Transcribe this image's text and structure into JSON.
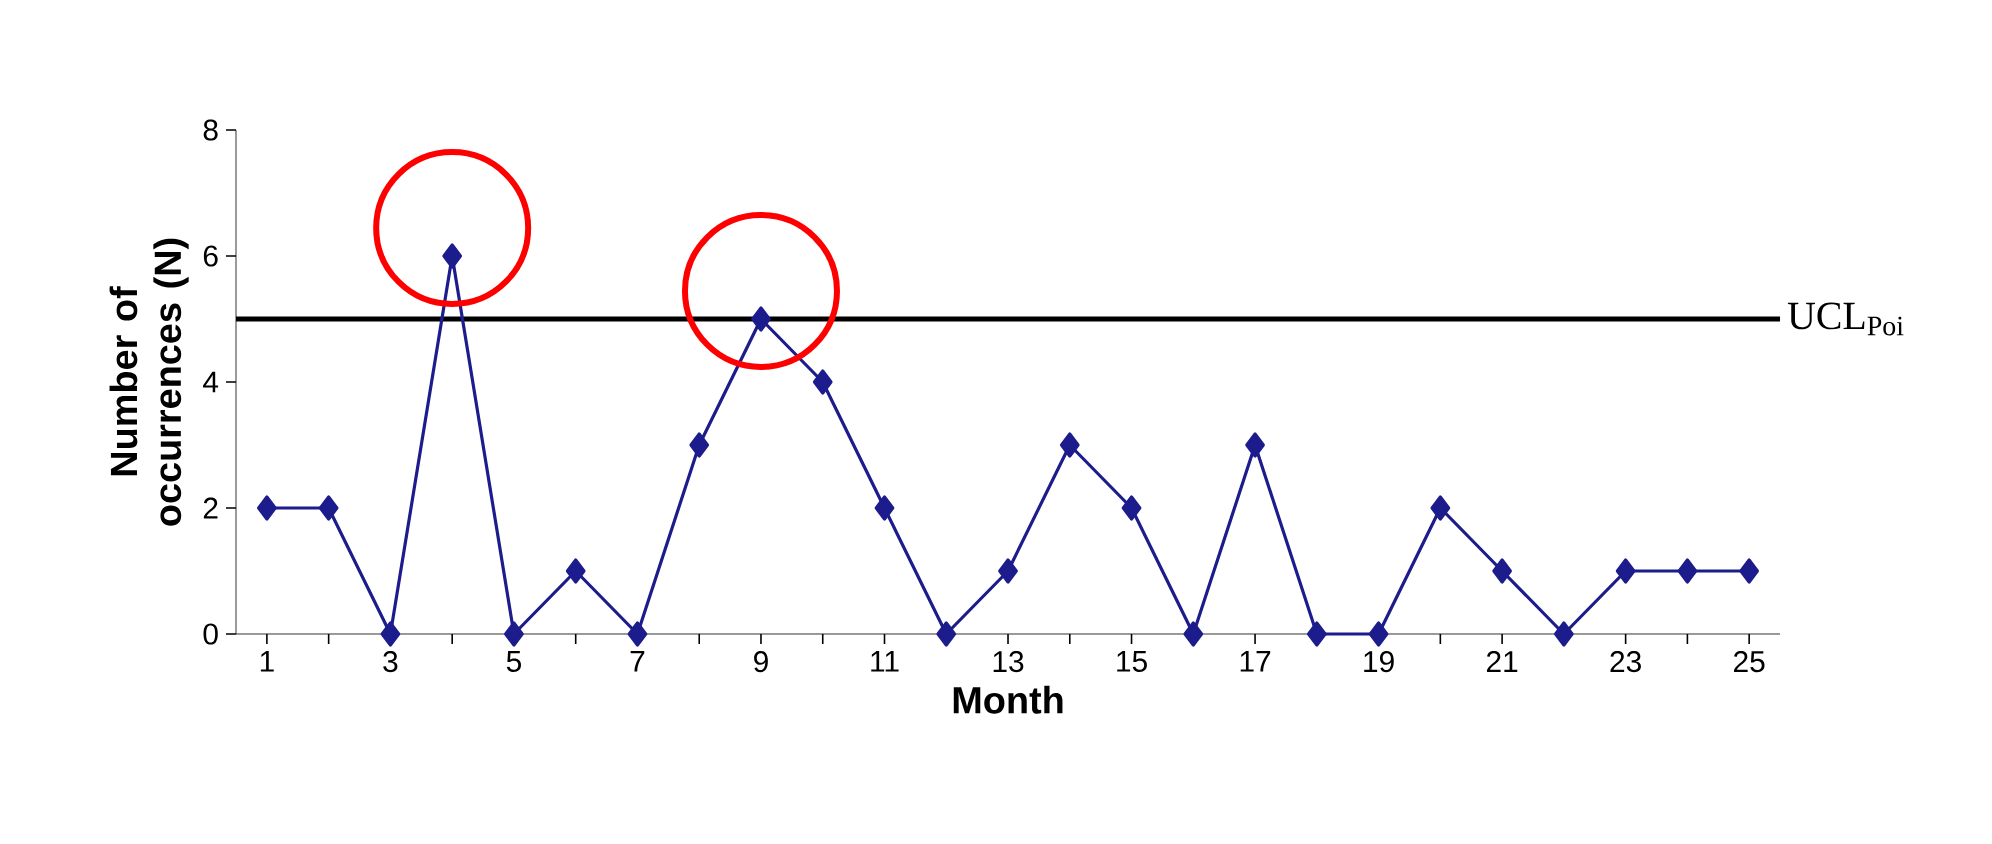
{
  "chart_data": {
    "type": "line",
    "xlabel": "Month",
    "ylabel": "Number of occurrences (N)",
    "x": [
      1,
      2,
      3,
      4,
      5,
      6,
      7,
      8,
      9,
      10,
      11,
      12,
      13,
      14,
      15,
      16,
      17,
      18,
      19,
      20,
      21,
      22,
      23,
      24,
      25
    ],
    "series": [
      {
        "color": "#1c1c8c",
        "values": [
          2,
          2,
          0,
          6,
          0,
          1,
          0,
          3,
          5,
          4,
          2,
          0,
          1,
          3,
          2,
          0,
          3,
          0,
          0,
          2,
          1,
          0,
          1,
          1,
          1
        ]
      }
    ],
    "xlim": [
      0.5,
      25.5
    ],
    "xticks": [
      1,
      3,
      5,
      7,
      9,
      11,
      13,
      15,
      17,
      19,
      21,
      23,
      25
    ],
    "ylim": [
      0,
      8
    ],
    "yticks": [
      0,
      2,
      4,
      6,
      8
    ],
    "marker": "diamond",
    "line_style": "solid",
    "grid": false,
    "ref_lines": [
      {
        "axis": "y",
        "value": 5,
        "label": "UCL$_{Poi}$",
        "color": "#000000"
      }
    ]
  }
}
